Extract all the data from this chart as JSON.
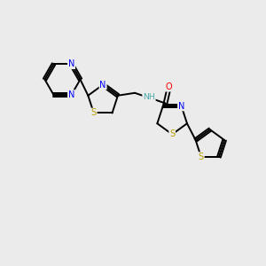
{
  "background_color": "#ebebeb",
  "bond_color": "#000000",
  "atom_colors": {
    "N": "#0000ff",
    "S": "#b8a000",
    "O": "#ff0000",
    "NH": "#4aabab",
    "C": "#000000"
  },
  "lw": 1.4,
  "fontsize": 7.0
}
